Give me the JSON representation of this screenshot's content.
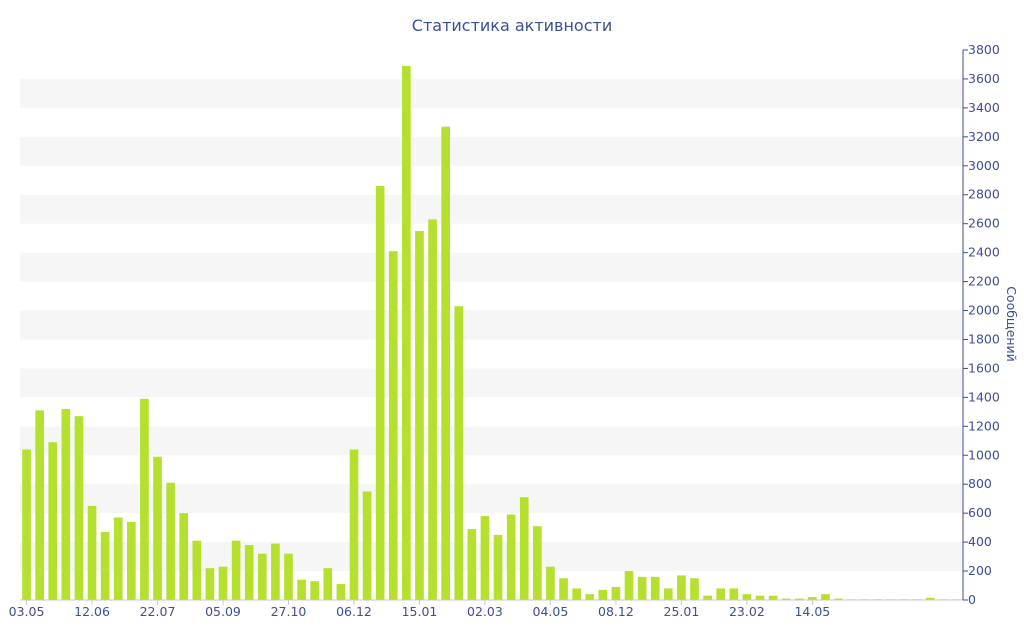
{
  "chart_data": {
    "type": "bar",
    "title": "Статистика активности",
    "xlabel": "",
    "ylabel": "Сообщений",
    "ylim": [
      0,
      3800
    ],
    "y_ticks": [
      0,
      200,
      400,
      600,
      800,
      1000,
      1200,
      1400,
      1600,
      1800,
      2000,
      2200,
      2400,
      2600,
      2800,
      3000,
      3200,
      3400,
      3600,
      3800
    ],
    "y_axis_side": "right",
    "grid": "alternating horizontal bands",
    "x_tick_labels": [
      {
        "label": "03.05",
        "index": 0
      },
      {
        "label": "12.06",
        "index": 5
      },
      {
        "label": "22.07",
        "index": 10
      },
      {
        "label": "05.09",
        "index": 15
      },
      {
        "label": "27.10",
        "index": 20
      },
      {
        "label": "06.12",
        "index": 25
      },
      {
        "label": "15.01",
        "index": 30
      },
      {
        "label": "02.03",
        "index": 35
      },
      {
        "label": "04.05",
        "index": 40
      },
      {
        "label": "08.12",
        "index": 45
      },
      {
        "label": "25.01",
        "index": 50
      },
      {
        "label": "23.02",
        "index": 55
      },
      {
        "label": "14.05",
        "index": 60
      }
    ],
    "series": [
      {
        "color": "#b5e02e",
        "values": [
          1040,
          1310,
          1090,
          1320,
          1270,
          650,
          470,
          570,
          540,
          1390,
          990,
          810,
          600,
          410,
          220,
          230,
          410,
          380,
          320,
          390,
          320,
          140,
          130,
          220,
          110,
          1040,
          750,
          2860,
          2410,
          3690,
          2550,
          2630,
          3270,
          2030,
          490,
          580,
          450,
          590,
          710,
          510,
          230,
          150,
          80,
          40,
          70,
          90,
          200,
          160,
          160,
          80,
          170,
          150,
          30,
          80,
          80,
          40,
          30,
          30,
          10,
          10,
          20,
          40,
          10,
          5,
          5,
          5,
          5,
          5,
          5,
          15,
          5,
          5
        ]
      }
    ]
  }
}
